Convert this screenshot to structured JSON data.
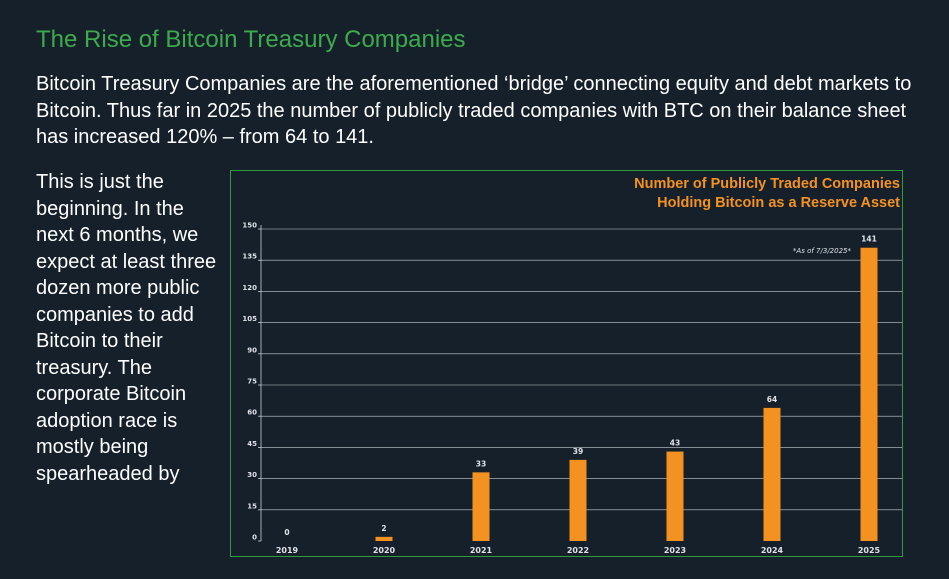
{
  "header": {
    "title": "The Rise of Bitcoin Treasury Companies",
    "intro": "Bitcoin Treasury Companies are the aforementioned ‘bridge’ connecting equity and debt markets to Bitcoin. Thus far in 2025 the number of publicly traded companies with BTC on their balance sheet has increased 120% – from 64 to 141."
  },
  "side_text": "This is just the beginning. In the next 6 months, we expect at least three dozen more public companies to add Bitcoin to their treasury. The corporate Bitcoin adoption race is mostly being spearheaded by",
  "colors": {
    "background": "#16202b",
    "title_green": "#3cab4b",
    "frame_green": "#2f9b3a",
    "bar_orange": "#f39221"
  },
  "chart_data": {
    "type": "bar",
    "title_line1": "Number of Publicly Traded Companies",
    "title_line2": "Holding Bitcoin as a Reserve Asset",
    "categories": [
      "2019",
      "2020",
      "2021",
      "2022",
      "2023",
      "2024",
      "2025"
    ],
    "values": [
      0,
      2,
      33,
      39,
      43,
      64,
      141
    ],
    "data_labels": [
      "0",
      "2",
      "33",
      "39",
      "43",
      "64",
      "141"
    ],
    "annotation": "*As of 7/3/2025*",
    "ylim": [
      0,
      150
    ],
    "yticks": [
      0,
      15,
      30,
      45,
      60,
      75,
      90,
      105,
      120,
      135,
      150
    ],
    "grid": true,
    "xlabel": "",
    "ylabel": ""
  }
}
